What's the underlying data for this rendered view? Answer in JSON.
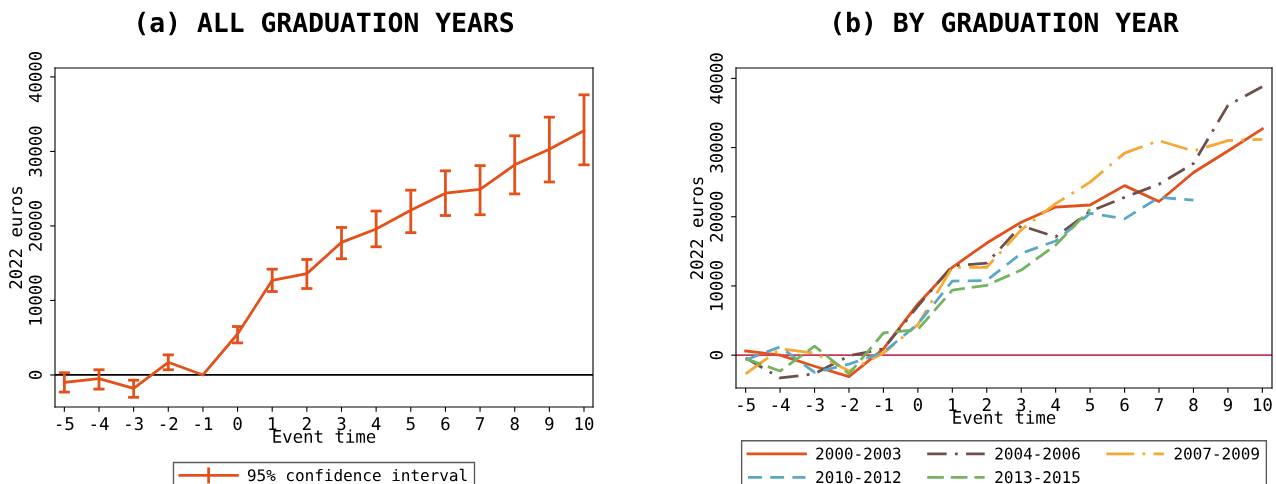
{
  "chart_data": [
    {
      "type": "line",
      "title": "(a) ALL GRADUATION YEARS",
      "xlabel": "Event time",
      "ylabel": "2022 euros",
      "x": [
        -5,
        -4,
        -3,
        -2,
        -1,
        0,
        1,
        2,
        3,
        4,
        5,
        6,
        7,
        8,
        9,
        10
      ],
      "series": [
        {
          "name": "95% confidence interval",
          "color": "#e4501a",
          "line_style": "solid",
          "values": [
            -1000,
            -500,
            -1800,
            1700,
            0,
            5500,
            12700,
            13600,
            17800,
            19600,
            22100,
            24400,
            24900,
            28200,
            30300,
            32800
          ],
          "errors": [
            [
              -2300,
              300
            ],
            [
              -1900,
              700
            ],
            [
              -3000,
              -700
            ],
            [
              700,
              2700
            ],
            null,
            [
              4300,
              6500
            ],
            [
              11200,
              14200
            ],
            [
              11600,
              15500
            ],
            [
              15600,
              19800
            ],
            [
              17200,
              22000
            ],
            [
              19100,
              24800
            ],
            [
              21400,
              27400
            ],
            [
              21500,
              28100
            ],
            [
              24300,
              32100
            ],
            [
              25900,
              34600
            ],
            [
              28200,
              37600
            ]
          ]
        }
      ],
      "xlim": [
        -5.27,
        10.26
      ],
      "ylim": [
        -4300,
        41200
      ],
      "xticks": [
        -5,
        -4,
        -3,
        -2,
        -1,
        0,
        1,
        2,
        3,
        4,
        5,
        6,
        7,
        8,
        9,
        10
      ],
      "yticks": [
        0,
        10000,
        20000,
        30000,
        40000
      ],
      "ref_lines": [
        {
          "axis": "y",
          "value": 0,
          "color": "#000000"
        }
      ],
      "grid": false,
      "legend": "bottom",
      "marker": "none"
    },
    {
      "type": "line",
      "title": "(b) BY GRADUATION YEAR",
      "xlabel": "Event time",
      "ylabel": "2022 euros",
      "x": [
        -5,
        -4,
        -3,
        -2,
        -1,
        0,
        1,
        2,
        3,
        4,
        5,
        6,
        7,
        8,
        9,
        10
      ],
      "series": [
        {
          "name": "2000-2003",
          "color": "#e4501a",
          "line_style": "solid",
          "values": [
            600,
            0,
            -1600,
            -3100,
            900,
            7400,
            12700,
            16200,
            19200,
            21400,
            21700,
            24500,
            22200,
            26400,
            29500,
            32700
          ]
        },
        {
          "name": "2004-2006",
          "color": "#6e4f4a",
          "line_style": "dashdot",
          "values": [
            -400,
            -3300,
            -2700,
            -100,
            900,
            7100,
            12900,
            13300,
            18700,
            17100,
            20800,
            22800,
            24700,
            27700,
            36100,
            38800
          ]
        },
        {
          "name": "2007-2009",
          "color": "#f7a733",
          "line_style": "longdashdot",
          "values": [
            -2700,
            900,
            300,
            -2300,
            300,
            4400,
            12700,
            12700,
            18100,
            21900,
            25000,
            29200,
            31000,
            29500,
            31000,
            31200
          ]
        },
        {
          "name": "2010-2012",
          "color": "#5aa8c8",
          "line_style": "dashed",
          "values": [
            -700,
            1200,
            -2500,
            -1300,
            400,
            4500,
            10700,
            10800,
            14700,
            16500,
            20500,
            19700,
            22800,
            22400,
            null,
            null
          ]
        },
        {
          "name": "2013-2015",
          "color": "#76b25f",
          "line_style": "longdashed",
          "values": [
            -500,
            -2300,
            1300,
            -2700,
            3200,
            3700,
            9400,
            10100,
            12300,
            15900,
            21100,
            null,
            null,
            null,
            null,
            null
          ]
        }
      ],
      "xlim": [
        -5.28,
        10.28
      ],
      "ylim": [
        -4750,
        41500
      ],
      "xticks": [
        -5,
        -4,
        -3,
        -2,
        -1,
        0,
        1,
        2,
        3,
        4,
        5,
        6,
        7,
        8,
        9,
        10
      ],
      "yticks": [
        0,
        10000,
        20000,
        30000,
        40000
      ],
      "ref_lines": [
        {
          "axis": "y",
          "value": 0,
          "color": "#c8365a"
        }
      ],
      "grid": false,
      "legend": "bottom",
      "marker": "none"
    }
  ]
}
